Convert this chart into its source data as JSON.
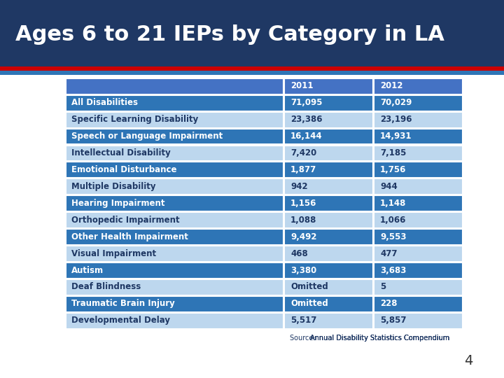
{
  "title": "Ages 6 to 21 IEPs by Category in LA",
  "title_bg": "#1F3864",
  "title_color": "#FFFFFF",
  "accent_color_red": "#CC0000",
  "accent_color_blue": "#2E75B6",
  "table_header": [
    "",
    "2011",
    "2012"
  ],
  "rows": [
    [
      "All Disabilities",
      "71,095",
      "70,029"
    ],
    [
      "Specific Learning Disability",
      "23,386",
      "23,196"
    ],
    [
      "Speech or Language Impairment",
      "16,144",
      "14,931"
    ],
    [
      "Intellectual Disability",
      "7,420",
      "7,185"
    ],
    [
      "Emotional Disturbance",
      "1,877",
      "1,756"
    ],
    [
      "Multiple Disability",
      "942",
      "944"
    ],
    [
      "Hearing Impairment",
      "1,156",
      "1,148"
    ],
    [
      "Orthopedic Impairment",
      "1,088",
      "1,066"
    ],
    [
      "Other Health Impairment",
      "9,492",
      "9,553"
    ],
    [
      "Visual Impairment",
      "468",
      "477"
    ],
    [
      "Autism",
      "3,380",
      "3,683"
    ],
    [
      "Deaf Blindness",
      "Omitted",
      "5"
    ],
    [
      "Traumatic Brain Injury",
      "Omitted",
      "228"
    ],
    [
      "Developmental Delay",
      "5,517",
      "5,857"
    ]
  ],
  "dark_row_color": "#2E75B6",
  "light_row_color": "#BDD7EE",
  "header_row_color": "#4472C4",
  "source_prefix": "Source: ",
  "source_link": "Annual Disability Statistics Compendium",
  "page_number": "4",
  "bg_color": "#FFFFFF"
}
